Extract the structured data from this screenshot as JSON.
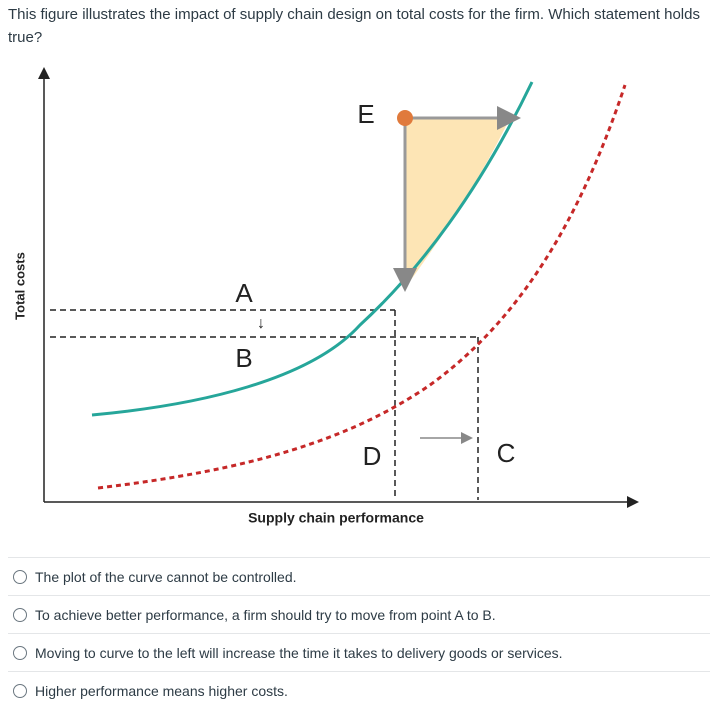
{
  "question": "This figure illustrates the impact of supply chain design on total costs for the firm.  Which statement holds true?",
  "figure": {
    "x_axis_label": "Supply chain performance",
    "y_axis_label": "Total costs",
    "labels": {
      "a": "A",
      "arrow": "↓",
      "b": "B",
      "c": "C",
      "d": "D",
      "e": "E"
    }
  },
  "options": [
    "The plot of the curve cannot be controlled.",
    "To achieve better performance, a firm should try to move from point A to B.",
    "Moving to curve to the left will increase the time it takes to delivery goods or services.",
    "Higher performance means higher costs."
  ]
}
